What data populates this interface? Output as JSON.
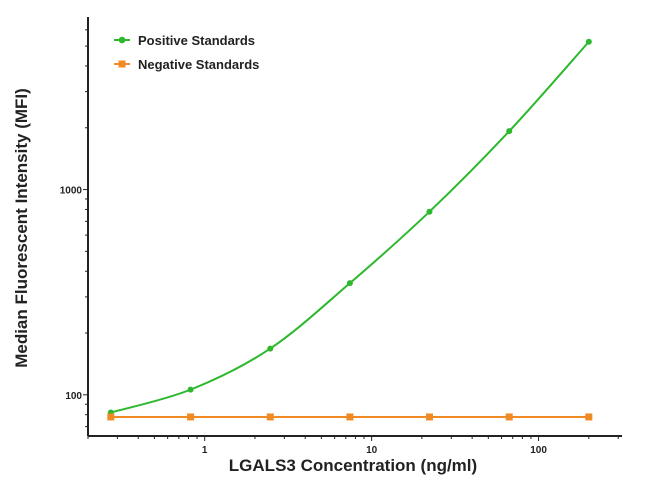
{
  "chart_data": {
    "type": "line",
    "title": "",
    "xlabel": "LGALS3 Concentration (ng/ml)",
    "ylabel": "Median Fluorescent Intensity (MFI)",
    "xscale": "log",
    "yscale": "log",
    "xlim": [
      0.2,
      316
    ],
    "ylim": [
      63,
      6700
    ],
    "xticks": [
      1,
      10,
      100
    ],
    "xtick_labels": [
      "1",
      "10",
      "100"
    ],
    "yticks": [
      100,
      1000
    ],
    "ytick_labels": [
      "100",
      "1000"
    ],
    "grid": false,
    "legend_position": "top-left",
    "series": [
      {
        "name": "Positive Standards",
        "color": "#2db82d",
        "marker": "circle",
        "x": [
          0.274,
          0.823,
          2.47,
          7.41,
          22.2,
          66.7,
          200
        ],
        "y": [
          82,
          106,
          168,
          350,
          780,
          1925,
          5250
        ]
      },
      {
        "name": "Negative Standards",
        "color": "#f08a24",
        "marker": "square",
        "x": [
          0.274,
          0.823,
          2.47,
          7.41,
          22.2,
          66.7,
          200
        ],
        "y": [
          78,
          78,
          78,
          78,
          78,
          78,
          78
        ]
      }
    ]
  }
}
